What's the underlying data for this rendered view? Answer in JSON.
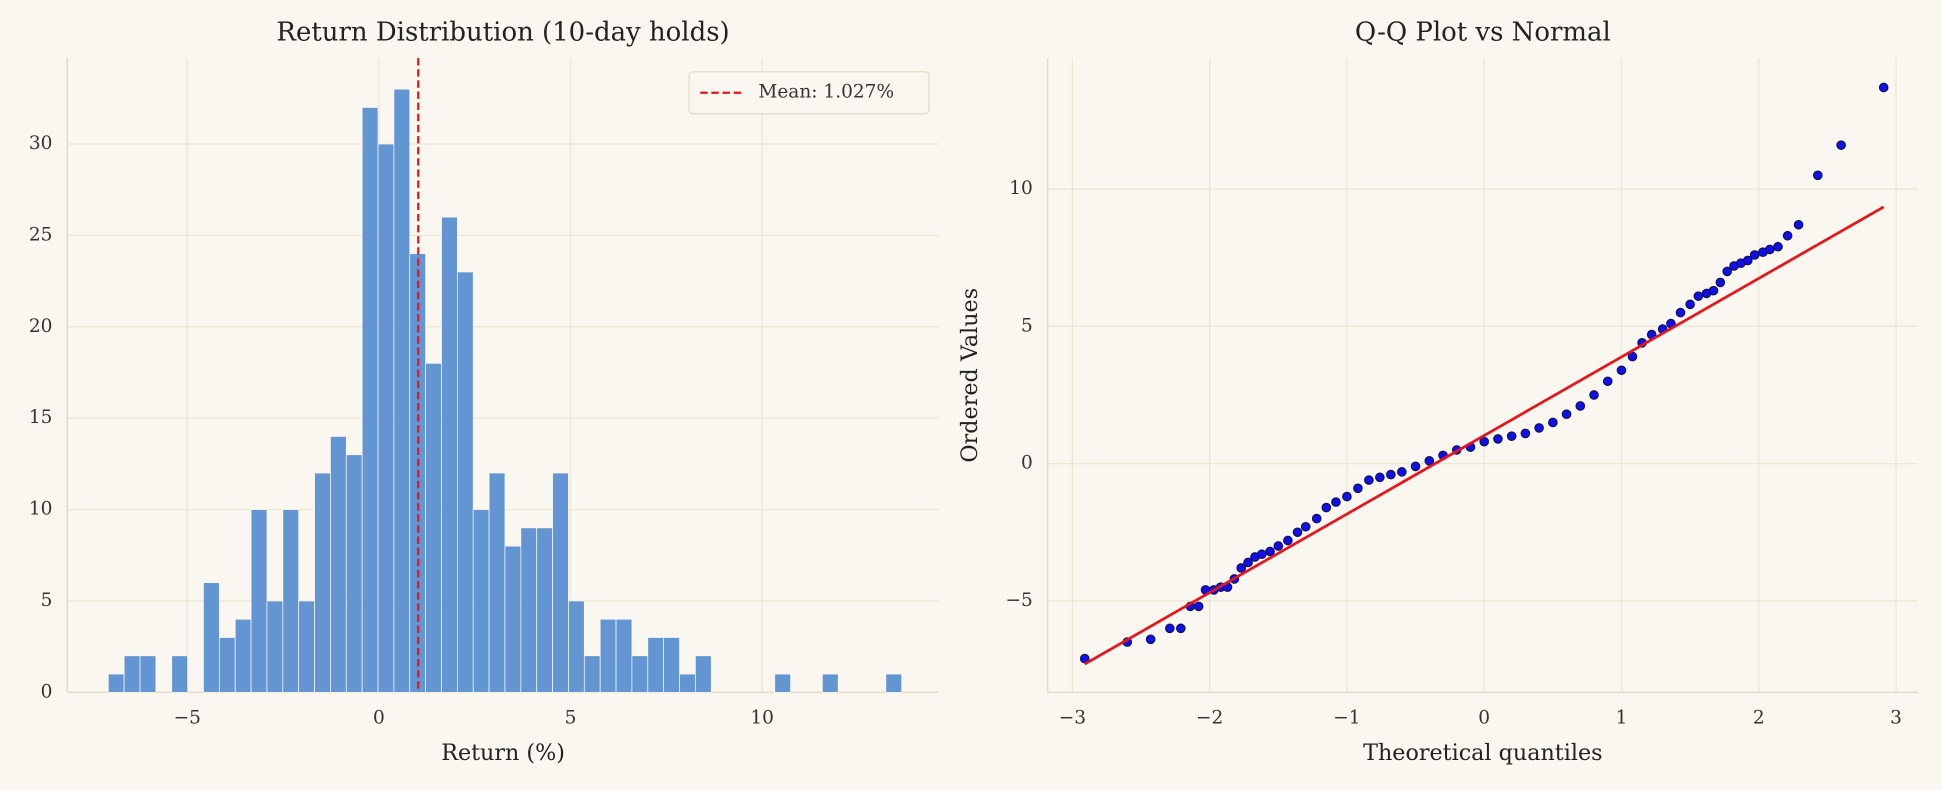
{
  "chart_data": [
    {
      "type": "histogram",
      "title": "Return Distribution (10-day holds)",
      "xlabel": "Return (%)",
      "bins": [
        -7.06,
        -6.646,
        -6.232,
        -5.818,
        -5.404,
        -4.99,
        -4.576,
        -4.162,
        -3.748,
        -3.334,
        -2.92,
        -2.506,
        -2.092,
        -1.678,
        -1.264,
        -0.85,
        -0.436,
        -0.022,
        0.392,
        0.806,
        1.22,
        1.634,
        2.048,
        2.462,
        2.876,
        3.29,
        3.704,
        4.118,
        4.532,
        4.946,
        5.36,
        5.774,
        6.188,
        6.602,
        7.016,
        7.43,
        7.844,
        8.258,
        8.672,
        9.086,
        9.5,
        9.914,
        10.328,
        10.742,
        11.156,
        11.57,
        11.984,
        12.398,
        12.812,
        13.226,
        13.64
      ],
      "values": [
        1,
        2,
        2,
        0,
        2,
        0,
        6,
        3,
        4,
        10,
        5,
        10,
        5,
        12,
        14,
        13,
        32,
        30,
        33,
        24,
        18,
        26,
        23,
        10,
        12,
        8,
        9,
        9,
        12,
        5,
        2,
        4,
        4,
        2,
        3,
        3,
        1,
        2,
        0,
        0,
        0,
        0,
        1,
        0,
        0,
        1,
        0,
        0,
        0,
        1
      ],
      "color": "#5b8fd0",
      "vline": {
        "value": 1.027,
        "label": "Mean: 1.027%",
        "color": "#e8141c"
      },
      "xlim": [
        -8.13,
        14.61
      ],
      "ylim": [
        0,
        34.7
      ],
      "xticks": [
        {
          "value": -5,
          "label": "−5"
        },
        0,
        5,
        10
      ],
      "yticks": [
        0,
        5,
        10,
        15,
        20,
        25,
        30
      ],
      "grid": true,
      "legend": "upper right"
    },
    {
      "type": "scatter",
      "title": "Q-Q Plot vs Normal",
      "xlabel": "Theoretical quantiles",
      "ylabel": "Ordered Values",
      "x": [
        -2.91,
        -2.6,
        -2.43,
        -2.29,
        -2.21,
        -2.14,
        -2.08,
        -2.03,
        -1.97,
        -1.92,
        -1.87,
        -1.82,
        -1.77,
        -1.72,
        -1.67,
        -1.62,
        -1.56,
        -1.5,
        -1.43,
        -1.36,
        -1.3,
        -1.22,
        -1.15,
        -1.08,
        -1.0,
        -0.92,
        -0.84,
        -0.76,
        -0.68,
        -0.6,
        -0.5,
        -0.4,
        -0.3,
        -0.2,
        -0.1,
        0,
        0.1,
        0.2,
        0.3,
        0.4,
        0.5,
        0.6,
        0.7,
        0.8,
        0.9,
        1.0,
        1.08,
        1.15,
        1.22,
        1.3,
        1.36,
        1.43,
        1.5,
        1.56,
        1.62,
        1.67,
        1.72,
        1.77,
        1.82,
        1.87,
        1.92,
        1.97,
        2.03,
        2.08,
        2.14,
        2.21,
        2.29,
        2.43,
        2.6,
        2.91
      ],
      "values": [
        -7.1,
        -6.5,
        -6.4,
        -6.0,
        -6.0,
        -5.2,
        -5.2,
        -4.6,
        -4.6,
        -4.5,
        -4.5,
        -4.2,
        -3.8,
        -3.6,
        -3.4,
        -3.3,
        -3.2,
        -3.0,
        -2.8,
        -2.5,
        -2.3,
        -2.0,
        -1.6,
        -1.4,
        -1.2,
        -0.9,
        -0.6,
        -0.5,
        -0.4,
        -0.3,
        -0.1,
        0.1,
        0.3,
        0.5,
        0.6,
        0.8,
        0.9,
        1.0,
        1.1,
        1.3,
        1.5,
        1.8,
        2.1,
        2.5,
        3.0,
        3.4,
        3.9,
        4.4,
        4.7,
        4.9,
        5.1,
        5.5,
        5.8,
        6.1,
        6.2,
        6.3,
        6.6,
        7.0,
        7.2,
        7.3,
        7.4,
        7.6,
        7.7,
        7.8,
        7.9,
        8.3,
        8.7,
        10.5,
        11.6,
        13.7
      ],
      "color": "#1010ee",
      "fit_line": {
        "x": [
          -2.91,
          2.91
        ],
        "y": [
          -7.3,
          9.35
        ],
        "color": "#e8141c"
      },
      "xlim": [
        -3.18,
        3.16
      ],
      "ylim": [
        -8.33,
        14.77
      ],
      "xticks": [
        {
          "value": -3,
          "label": "−3"
        },
        {
          "value": -2,
          "label": "−2"
        },
        {
          "value": -1,
          "label": "−1"
        },
        0,
        1,
        2,
        3
      ],
      "yticks": [
        {
          "value": -5,
          "label": "−5"
        },
        0,
        5,
        10
      ],
      "grid": true
    }
  ]
}
